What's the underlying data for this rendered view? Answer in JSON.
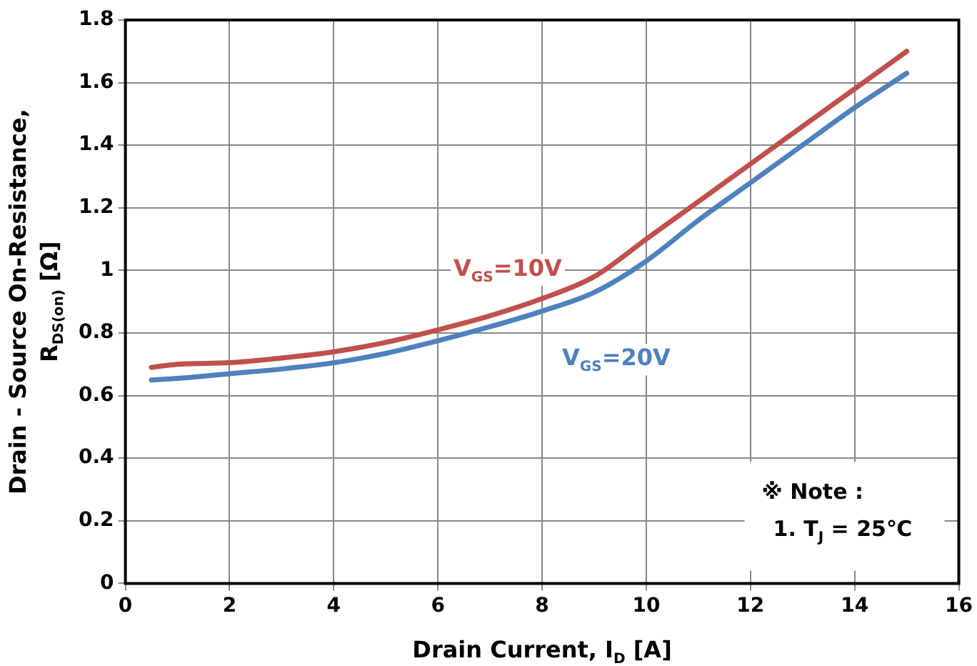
{
  "chart_data": {
    "type": "line",
    "xlabel": "Drain Current, I$_{D}$ [A]",
    "ylabel": "Drain - Source On-Resistance,\nR$_{DS(on)}$ [Ω]",
    "series": [
      {
        "name": "V$_{GS}$=10V",
        "color": "#c0504d",
        "x": [
          0.5,
          1,
          2,
          3,
          4,
          5,
          6,
          7,
          8,
          9,
          10,
          11,
          12,
          13,
          14,
          15
        ],
        "values": [
          0.69,
          0.7,
          0.705,
          0.72,
          0.74,
          0.77,
          0.81,
          0.855,
          0.91,
          0.98,
          1.1,
          1.22,
          1.34,
          1.46,
          1.58,
          1.7
        ]
      },
      {
        "name": "V$_{GS}$=20V",
        "color": "#4f81bd",
        "x": [
          0.5,
          1,
          2,
          3,
          4,
          5,
          6,
          7,
          8,
          9,
          10,
          11,
          12,
          13,
          14,
          15
        ],
        "values": [
          0.65,
          0.655,
          0.67,
          0.685,
          0.705,
          0.735,
          0.775,
          0.82,
          0.87,
          0.93,
          1.03,
          1.16,
          1.28,
          1.4,
          1.52,
          1.63
        ]
      }
    ],
    "xlim": [
      0,
      16
    ],
    "xticks": [
      0,
      2,
      4,
      6,
      8,
      10,
      12,
      14,
      16
    ],
    "ylim": [
      0,
      1.8
    ],
    "yticks": [
      0,
      0.2,
      0.4,
      0.6,
      0.8,
      1,
      1.2,
      1.4,
      1.6,
      1.8
    ],
    "grid": true,
    "legend": false,
    "marker": "none",
    "line_style": "solid",
    "annotations": [
      "※ Note :",
      "1. T$_{J}$ = 25℃"
    ]
  }
}
